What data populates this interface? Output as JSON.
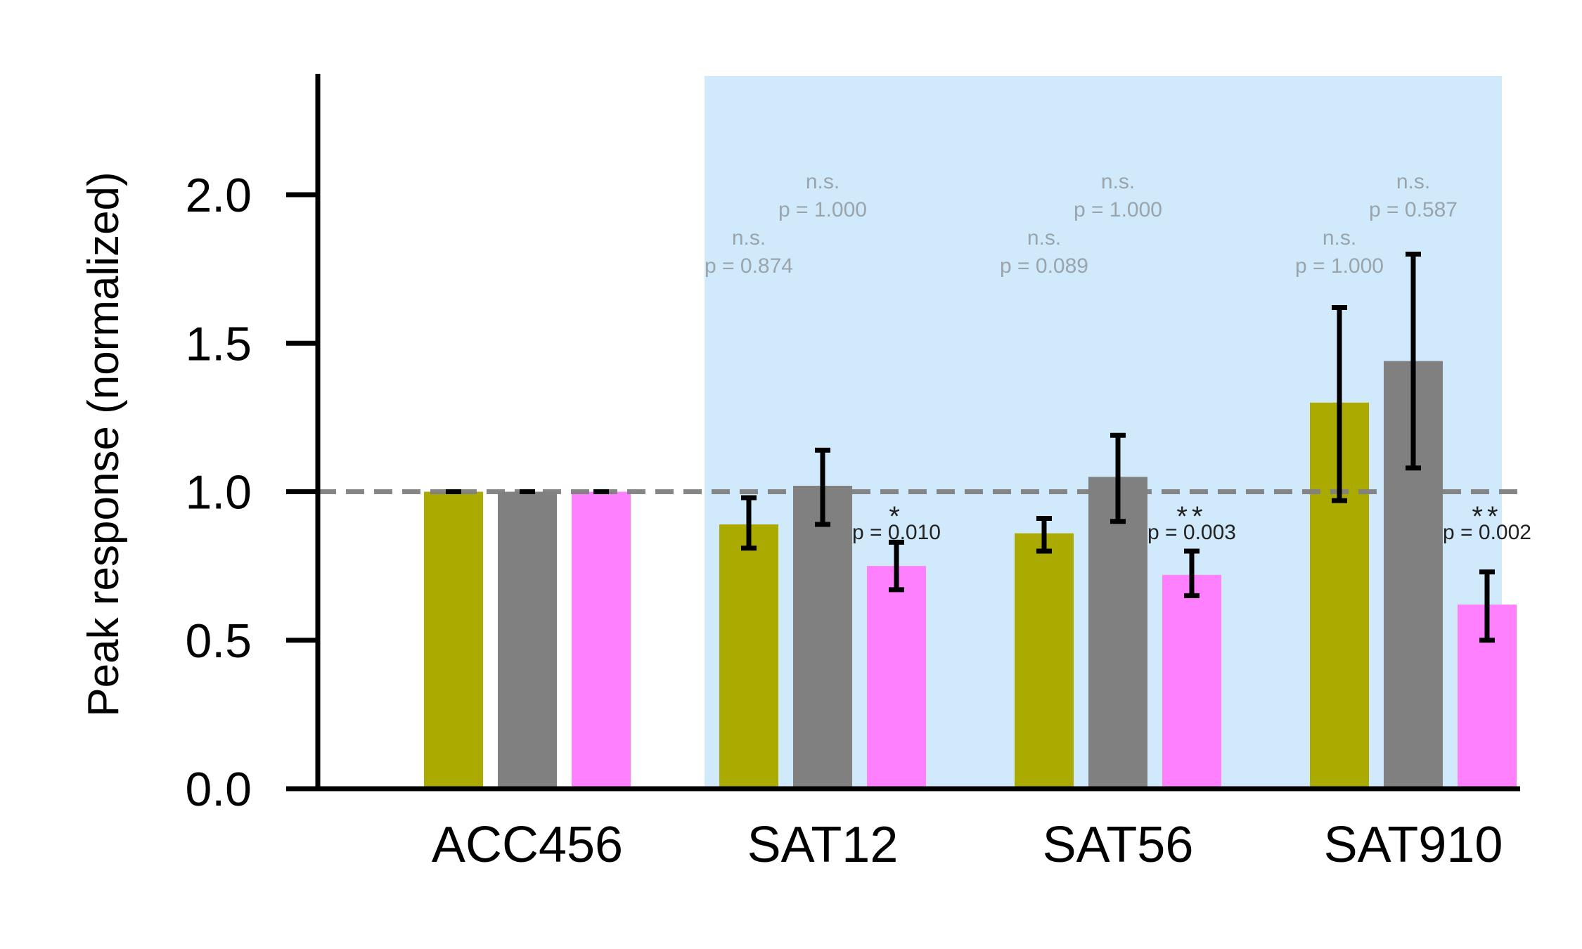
{
  "chart_data": {
    "type": "bar",
    "ylabel": "Peak response (normalized)",
    "xlabel": "",
    "title": "",
    "ylim": [
      0,
      2.4
    ],
    "yticks": [
      "0.0",
      "0.5",
      "1.0",
      "1.5",
      "2.0"
    ],
    "ytick_values": [
      0,
      0.5,
      1.0,
      1.5,
      2.0
    ],
    "categories": [
      "ACC456",
      "SAT12",
      "SAT56",
      "SAT910"
    ],
    "reference_line": 1.0,
    "shaded_categories": [
      "SAT12",
      "SAT56",
      "SAT910"
    ],
    "colors": {
      "series": [
        "#aaaa00",
        "#808080",
        "#ff80ff"
      ],
      "shading": "#d0eafb",
      "reference_line": "#808080"
    },
    "series": [
      {
        "values": [
          1.0,
          0.89,
          0.86,
          1.3
        ],
        "err_low": [
          1.0,
          0.81,
          0.8,
          0.97
        ],
        "err_high": [
          1.0,
          0.98,
          0.91,
          1.62
        ]
      },
      {
        "values": [
          1.0,
          1.02,
          1.05,
          1.44
        ],
        "err_low": [
          1.0,
          0.89,
          0.9,
          1.08
        ],
        "err_high": [
          1.0,
          1.14,
          1.19,
          1.8
        ]
      },
      {
        "values": [
          1.0,
          0.75,
          0.72,
          0.62
        ],
        "err_low": [
          1.0,
          0.67,
          0.65,
          0.5
        ],
        "err_high": [
          1.0,
          0.83,
          0.8,
          0.73
        ]
      }
    ],
    "annotations": [
      {
        "category": "SAT12",
        "series": 0,
        "sig": "n.s.",
        "p": "p = 0.874",
        "significant": false
      },
      {
        "category": "SAT12",
        "series": 1,
        "sig": "n.s.",
        "p": "p = 1.000",
        "significant": false
      },
      {
        "category": "SAT12",
        "series": 2,
        "sig": "*",
        "p": "p = 0.010",
        "significant": true
      },
      {
        "category": "SAT56",
        "series": 0,
        "sig": "n.s.",
        "p": "p = 0.089",
        "significant": false
      },
      {
        "category": "SAT56",
        "series": 1,
        "sig": "n.s.",
        "p": "p = 1.000",
        "significant": false
      },
      {
        "category": "SAT56",
        "series": 2,
        "sig": "**",
        "p": "p = 0.003",
        "significant": true
      },
      {
        "category": "SAT910",
        "series": 0,
        "sig": "n.s.",
        "p": "p = 1.000",
        "significant": false
      },
      {
        "category": "SAT910",
        "series": 1,
        "sig": "n.s.",
        "p": "p = 0.587",
        "significant": false
      },
      {
        "category": "SAT910",
        "series": 2,
        "sig": "**",
        "p": "p = 0.002",
        "significant": true
      }
    ]
  }
}
